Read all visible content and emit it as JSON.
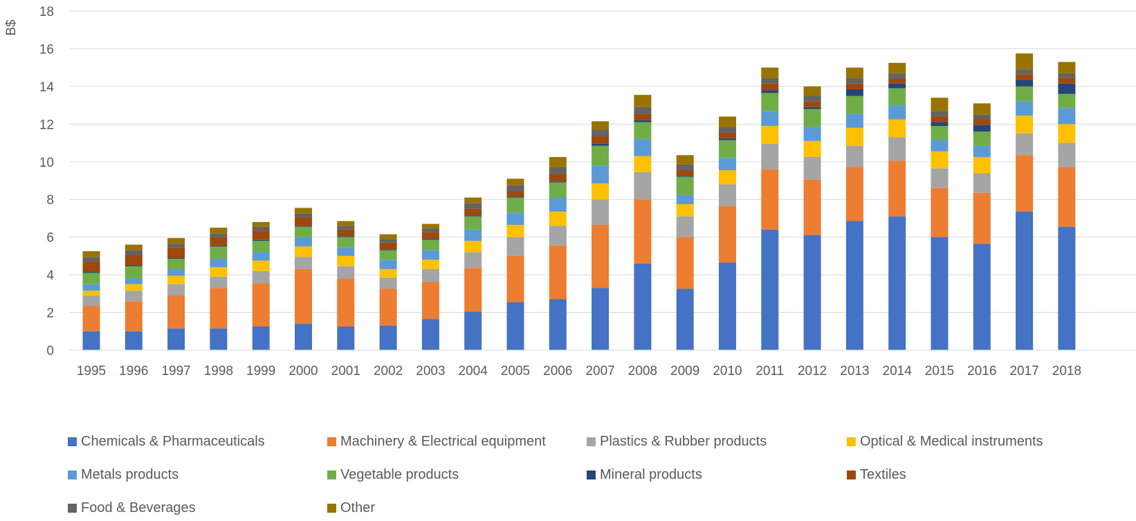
{
  "chart_data": {
    "type": "bar",
    "stacked": true,
    "ylabel": "B$",
    "ylim": [
      0,
      18
    ],
    "yticks": [
      0,
      2,
      4,
      6,
      8,
      10,
      12,
      14,
      16,
      18
    ],
    "grid": true,
    "legend_position": "bottom",
    "categories": [
      "1995",
      "1996",
      "1997",
      "1998",
      "1999",
      "2000",
      "2001",
      "2002",
      "2003",
      "2004",
      "2005",
      "2006",
      "2007",
      "2008",
      "2009",
      "2010",
      "2011",
      "2012",
      "2013",
      "2014",
      "2015",
      "2016",
      "2017",
      "2018"
    ],
    "series": [
      {
        "name": "Chemicals & Pharmaceuticals",
        "color": "#4472C4",
        "values": [
          1.0,
          1.0,
          1.15,
          1.15,
          1.25,
          1.4,
          1.25,
          1.3,
          1.65,
          2.05,
          2.55,
          2.7,
          3.3,
          4.6,
          3.25,
          4.65,
          6.4,
          6.1,
          6.85,
          7.1,
          6.0,
          5.65,
          7.35,
          6.55
        ]
      },
      {
        "name": "Machinery & Electrical equipment",
        "color": "#ED7D31",
        "values": [
          1.35,
          1.6,
          1.75,
          2.15,
          2.3,
          2.9,
          2.55,
          1.95,
          1.95,
          2.3,
          2.45,
          2.85,
          3.35,
          3.4,
          2.75,
          3.0,
          3.2,
          2.95,
          2.85,
          2.95,
          2.6,
          2.7,
          3.0,
          3.15
        ]
      },
      {
        "name": "Plastics & Rubber products",
        "color": "#A5A5A5",
        "values": [
          0.55,
          0.55,
          0.6,
          0.6,
          0.65,
          0.65,
          0.65,
          0.6,
          0.7,
          0.85,
          1.0,
          1.05,
          1.35,
          1.45,
          1.1,
          1.15,
          1.35,
          1.2,
          1.15,
          1.25,
          1.05,
          1.05,
          1.15,
          1.3
        ]
      },
      {
        "name": "Optical & Medical instruments",
        "color": "#FFC000",
        "values": [
          0.25,
          0.35,
          0.45,
          0.5,
          0.55,
          0.55,
          0.55,
          0.45,
          0.5,
          0.6,
          0.65,
          0.75,
          0.85,
          0.85,
          0.65,
          0.75,
          0.95,
          0.85,
          0.95,
          0.95,
          0.9,
          0.85,
          0.95,
          1.0
        ]
      },
      {
        "name": "Metals products",
        "color": "#5B9BD5",
        "values": [
          0.35,
          0.3,
          0.35,
          0.45,
          0.45,
          0.5,
          0.45,
          0.5,
          0.5,
          0.6,
          0.65,
          0.75,
          0.95,
          0.9,
          0.5,
          0.65,
          0.8,
          0.75,
          0.75,
          0.75,
          0.6,
          0.6,
          0.75,
          0.85
        ]
      },
      {
        "name": "Vegetable products",
        "color": "#70AD47",
        "values": [
          0.6,
          0.65,
          0.55,
          0.65,
          0.6,
          0.55,
          0.55,
          0.5,
          0.55,
          0.7,
          0.8,
          0.8,
          1.05,
          0.9,
          0.95,
          0.95,
          0.95,
          0.95,
          0.95,
          0.9,
          0.75,
          0.75,
          0.8,
          0.75
        ]
      },
      {
        "name": "Mineral products",
        "color": "#264478",
        "values": [
          0.05,
          0.05,
          0.05,
          0.05,
          0.05,
          0.05,
          0.05,
          0.05,
          0.05,
          0.05,
          0.05,
          0.05,
          0.1,
          0.1,
          0.05,
          0.1,
          0.15,
          0.1,
          0.35,
          0.25,
          0.2,
          0.35,
          0.35,
          0.55
        ]
      },
      {
        "name": "Textiles",
        "color": "#9E480E",
        "values": [
          0.55,
          0.55,
          0.55,
          0.45,
          0.5,
          0.45,
          0.35,
          0.35,
          0.35,
          0.35,
          0.3,
          0.4,
          0.4,
          0.35,
          0.3,
          0.3,
          0.35,
          0.3,
          0.3,
          0.25,
          0.3,
          0.3,
          0.3,
          0.3
        ]
      },
      {
        "name": "Food & Beverages",
        "color": "#636363",
        "values": [
          0.25,
          0.25,
          0.2,
          0.2,
          0.2,
          0.2,
          0.2,
          0.2,
          0.2,
          0.3,
          0.3,
          0.35,
          0.35,
          0.35,
          0.3,
          0.3,
          0.3,
          0.3,
          0.3,
          0.3,
          0.3,
          0.25,
          0.25,
          0.25
        ]
      },
      {
        "name": "Other",
        "color": "#997300",
        "values": [
          0.3,
          0.3,
          0.3,
          0.3,
          0.25,
          0.3,
          0.25,
          0.25,
          0.25,
          0.3,
          0.35,
          0.55,
          0.45,
          0.65,
          0.5,
          0.55,
          0.55,
          0.5,
          0.55,
          0.55,
          0.7,
          0.6,
          0.85,
          0.6
        ]
      }
    ]
  }
}
